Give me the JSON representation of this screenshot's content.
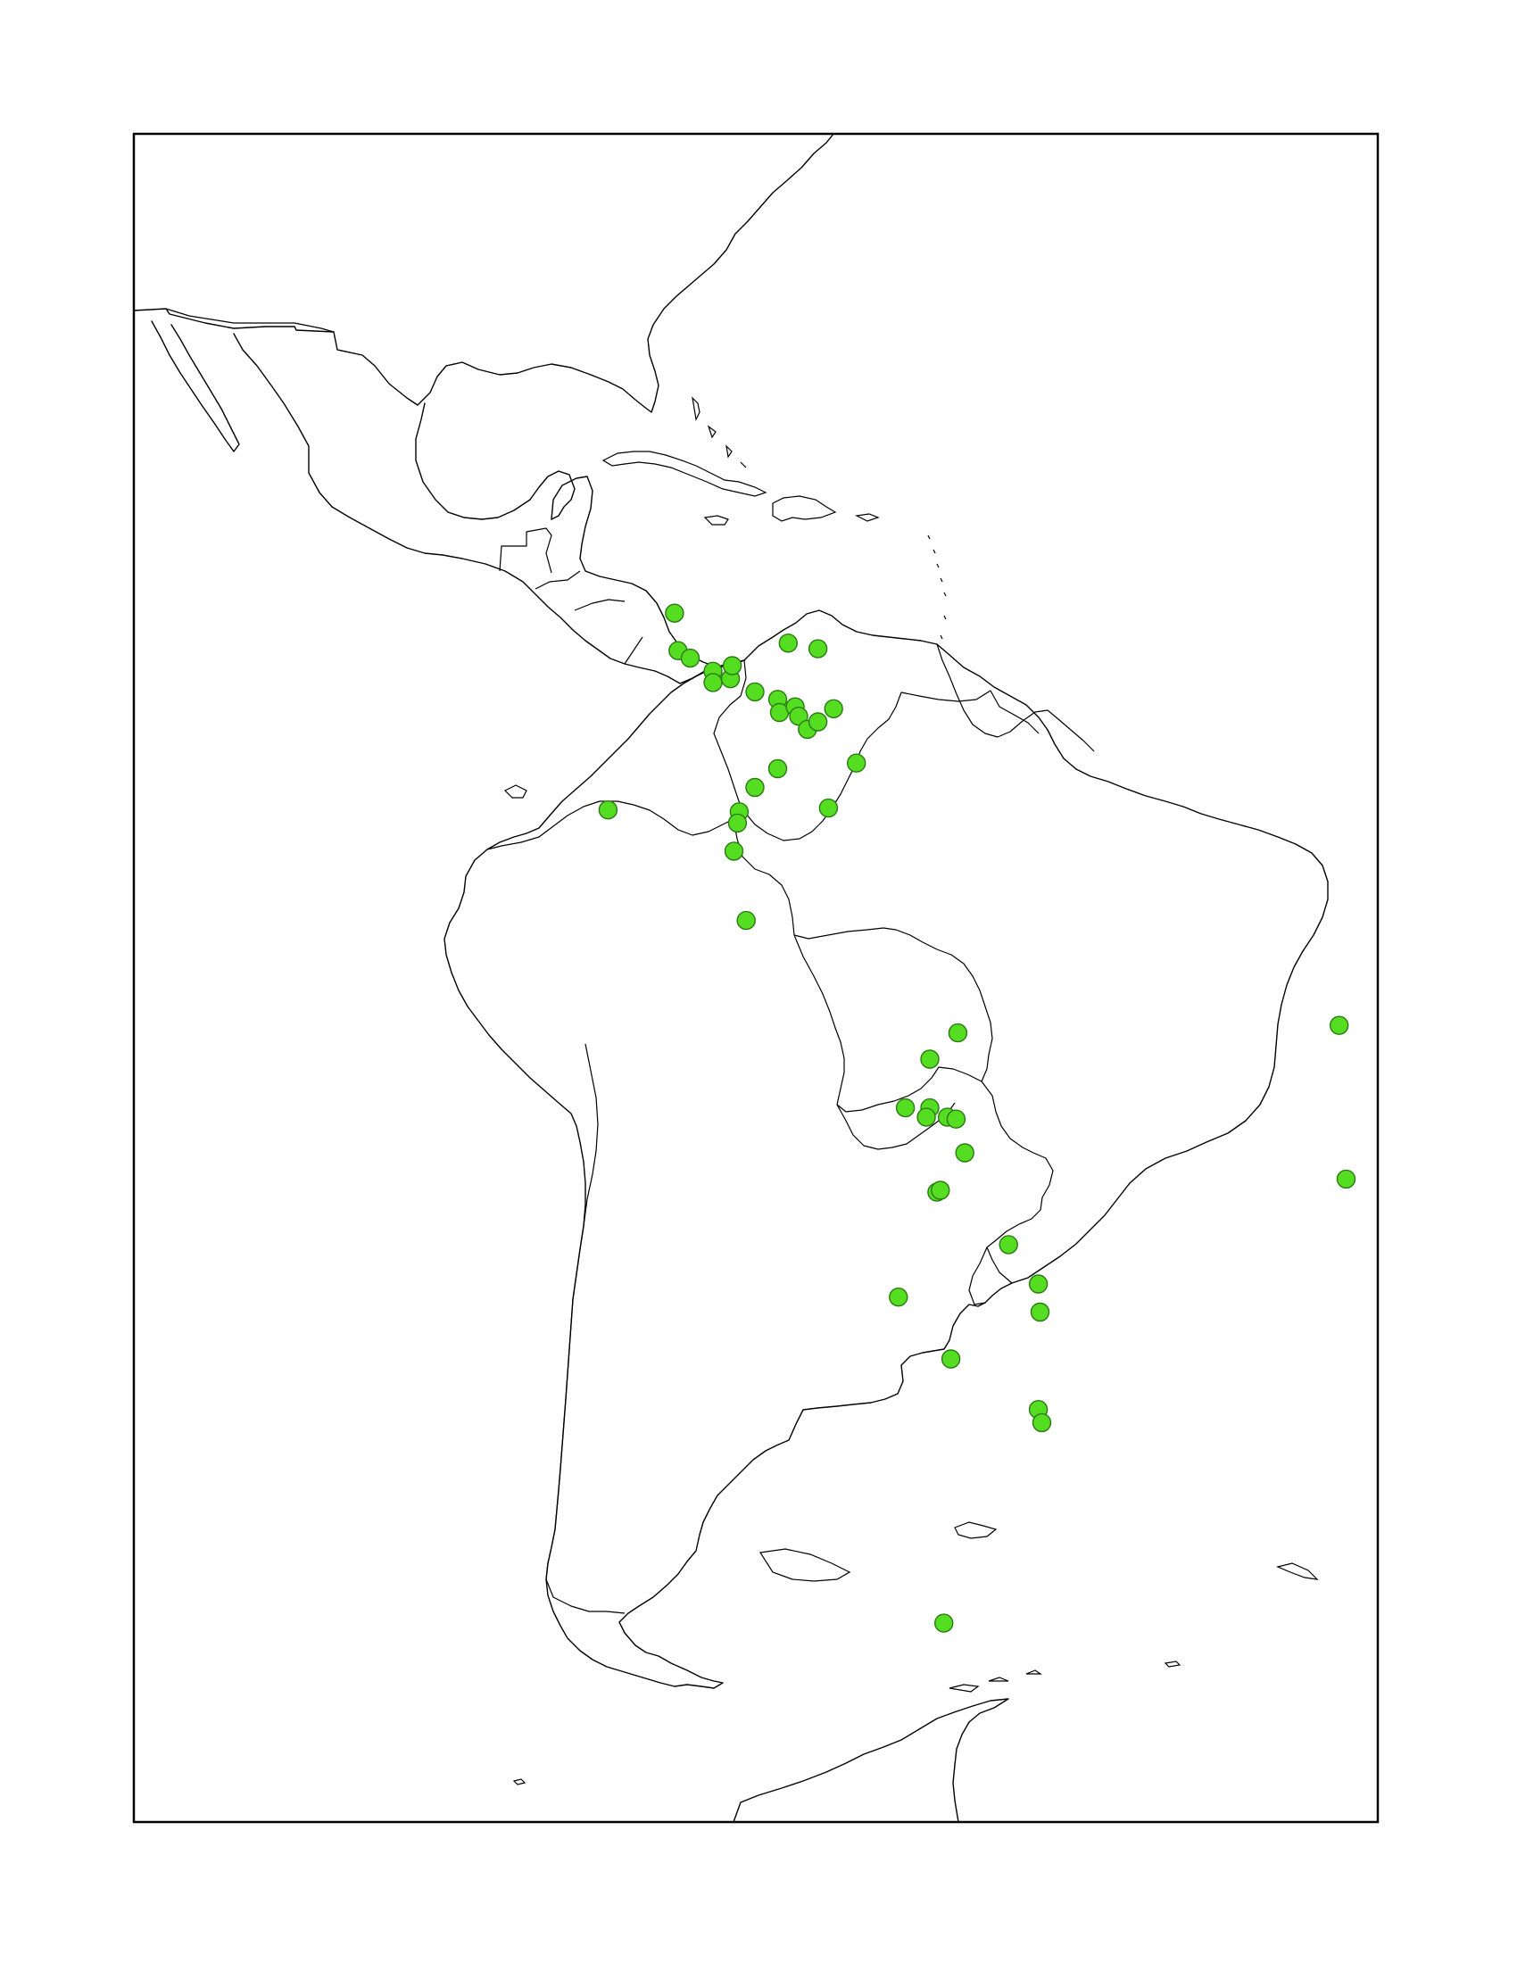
{
  "map": {
    "type": "point-distribution-map",
    "region": "Latin America",
    "background": "#ffffff",
    "land_fill": "#ffffff",
    "outline_color": "#000000",
    "marker_color": "#55dd22",
    "marker_stroke": "#2a7a12",
    "marker_shape": "circle",
    "frame": true
  },
  "points": [
    {
      "lon": -87.2,
      "lat": 14.8
    },
    {
      "lon": -87.0,
      "lat": 12.8
    },
    {
      "lon": -86.3,
      "lat": 12.4
    },
    {
      "lon": -85.0,
      "lat": 11.7
    },
    {
      "lon": -85.0,
      "lat": 11.1
    },
    {
      "lon": -84.0,
      "lat": 11.3
    },
    {
      "lon": -83.9,
      "lat": 12.0
    },
    {
      "lon": -82.6,
      "lat": 10.6
    },
    {
      "lon": -80.7,
      "lat": 13.2
    },
    {
      "lon": -79.0,
      "lat": 12.9
    },
    {
      "lon": -81.3,
      "lat": 10.2
    },
    {
      "lon": -81.2,
      "lat": 9.5
    },
    {
      "lon": -80.3,
      "lat": 9.8
    },
    {
      "lon": -80.1,
      "lat": 9.3
    },
    {
      "lon": -79.6,
      "lat": 8.6
    },
    {
      "lon": -79.0,
      "lat": 9.0
    },
    {
      "lon": -78.1,
      "lat": 9.7
    },
    {
      "lon": -76.8,
      "lat": 6.8
    },
    {
      "lon": -78.4,
      "lat": 4.4
    },
    {
      "lon": -81.3,
      "lat": 6.5
    },
    {
      "lon": -82.6,
      "lat": 5.5
    },
    {
      "lon": -83.5,
      "lat": 4.2
    },
    {
      "lon": -83.6,
      "lat": 3.6
    },
    {
      "lon": -83.8,
      "lat": 2.1
    },
    {
      "lon": -83.1,
      "lat": -1.6
    },
    {
      "lon": -91.0,
      "lat": 4.3
    },
    {
      "lon": -71.0,
      "lat": -7.6
    },
    {
      "lon": -72.6,
      "lat": -9.0
    },
    {
      "lon": -74.0,
      "lat": -11.6
    },
    {
      "lon": -72.6,
      "lat": -11.6
    },
    {
      "lon": -72.8,
      "lat": -12.1
    },
    {
      "lon": -71.6,
      "lat": -12.1
    },
    {
      "lon": -71.1,
      "lat": -12.2
    },
    {
      "lon": -70.6,
      "lat": -14.0
    },
    {
      "lon": -72.2,
      "lat": -16.1
    },
    {
      "lon": -72.0,
      "lat": -16.0
    },
    {
      "lon": -68.1,
      "lat": -18.9
    },
    {
      "lon": -66.4,
      "lat": -21.0
    },
    {
      "lon": -66.3,
      "lat": -22.5
    },
    {
      "lon": -74.4,
      "lat": -21.7
    },
    {
      "lon": -71.4,
      "lat": -25.0
    },
    {
      "lon": -66.4,
      "lat": -27.7
    },
    {
      "lon": -66.2,
      "lat": -28.4
    },
    {
      "lon": -71.8,
      "lat": -39.1
    },
    {
      "lon": -49.2,
      "lat": -7.2
    },
    {
      "lon": -48.8,
      "lat": -15.4
    }
  ]
}
